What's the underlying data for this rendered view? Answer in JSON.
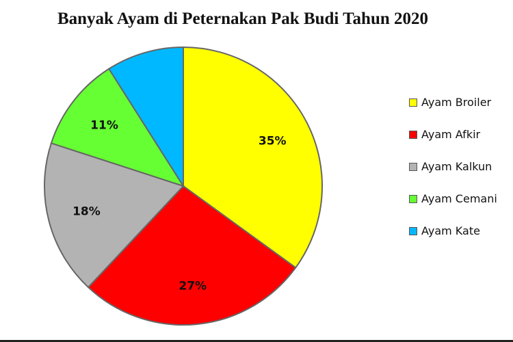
{
  "chart_data": {
    "type": "pie",
    "title": "Banyak Ayam di Peternakan Pak Budi Tahun 2020",
    "categories": [
      "Ayam Broiler",
      "Ayam Afkir",
      "Ayam Kalkun",
      "Ayam Cemani",
      "Ayam Kate"
    ],
    "values": [
      35,
      27,
      18,
      11,
      9
    ],
    "value_labels": [
      "35%",
      "27%",
      "18%",
      "11%",
      ""
    ],
    "colors": [
      "#ffff00",
      "#ff0000",
      "#b3b3b3",
      "#66ff33",
      "#00b8ff"
    ],
    "legend_position": "right"
  }
}
